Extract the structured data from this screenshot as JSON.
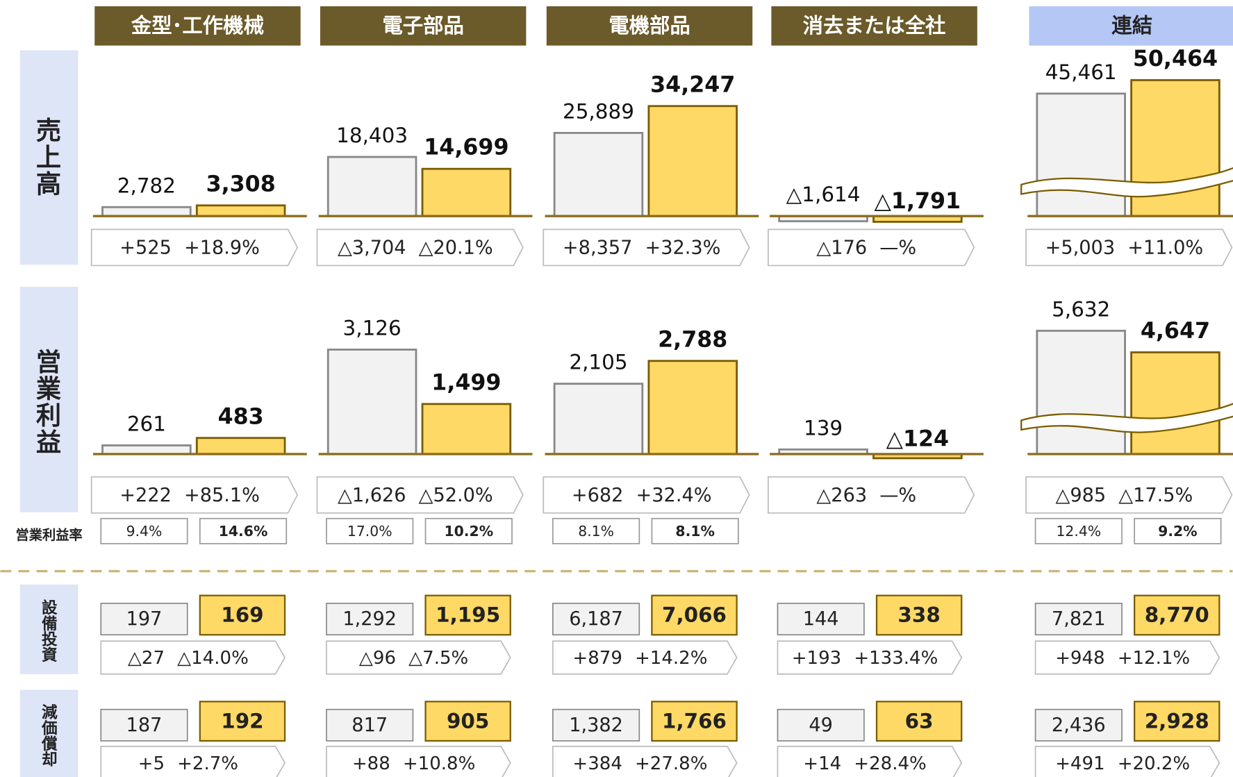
{
  "row_labels": {
    "sales": "売上高",
    "op": "営業利益",
    "margin": "営業利益率",
    "capex": "設備投資",
    "dep": "減価償却"
  },
  "colors": {
    "prev": "#f2f2f2",
    "curr": "#ffd966",
    "header": "#6b5a2a",
    "header_total": "#b4c7f5"
  },
  "segments": [
    {
      "name": "金型･工作機械",
      "sales": {
        "prev": {
          "value": 2782,
          "label": "2,782"
        },
        "curr": {
          "value": 3308,
          "label": "3,308"
        },
        "diff": "+525",
        "rate": "+18.9%"
      },
      "op": {
        "prev": {
          "value": 261,
          "label": "261"
        },
        "curr": {
          "value": 483,
          "label": "483"
        },
        "diff": "+222",
        "rate": "+85.1%"
      },
      "margin": [
        "9.4%",
        "14.6%"
      ],
      "capex": {
        "prev": "197",
        "curr": "169",
        "diff": "△27",
        "rate": "△14.0%"
      },
      "dep": {
        "prev": "187",
        "curr": "192",
        "diff": "+5",
        "rate": "+2.7%"
      }
    },
    {
      "name": "電子部品",
      "sales": {
        "prev": {
          "value": 18403,
          "label": "18,403"
        },
        "curr": {
          "value": 14699,
          "label": "14,699"
        },
        "diff": "△3,704",
        "rate": "△20.1%"
      },
      "op": {
        "prev": {
          "value": 3126,
          "label": "3,126"
        },
        "curr": {
          "value": 1499,
          "label": "1,499"
        },
        "diff": "△1,626",
        "rate": "△52.0%"
      },
      "margin": [
        "17.0%",
        "10.2%"
      ],
      "capex": {
        "prev": "1,292",
        "curr": "1,195",
        "diff": "△96",
        "rate": "△7.5%"
      },
      "dep": {
        "prev": "817",
        "curr": "905",
        "diff": "+88",
        "rate": "+10.8%"
      }
    },
    {
      "name": "電機部品",
      "sales": {
        "prev": {
          "value": 25889,
          "label": "25,889"
        },
        "curr": {
          "value": 34247,
          "label": "34,247"
        },
        "diff": "+8,357",
        "rate": "+32.3%"
      },
      "op": {
        "prev": {
          "value": 2105,
          "label": "2,105"
        },
        "curr": {
          "value": 2788,
          "label": "2,788"
        },
        "diff": "+682",
        "rate": "+32.4%"
      },
      "margin": [
        "8.1%",
        "8.1%"
      ],
      "capex": {
        "prev": "6,187",
        "curr": "7,066",
        "diff": "+879",
        "rate": "+14.2%"
      },
      "dep": {
        "prev": "1,382",
        "curr": "1,766",
        "diff": "+384",
        "rate": "+27.8%"
      }
    },
    {
      "name": "消去または全社",
      "sales": {
        "prev": {
          "value": -1614,
          "label": "△1,614"
        },
        "curr": {
          "value": -1791,
          "label": "△1,791"
        },
        "diff": "△176",
        "rate": "—%"
      },
      "op": {
        "prev": {
          "value": 139,
          "label": "139"
        },
        "curr": {
          "value": -124,
          "label": "△124"
        },
        "diff": "△263",
        "rate": "—%"
      },
      "capex": {
        "prev": "144",
        "curr": "338",
        "diff": "+193",
        "rate": "+133.4%"
      },
      "dep": {
        "prev": "49",
        "curr": "63",
        "diff": "+14",
        "rate": "+28.4%"
      }
    },
    {
      "name": "連結",
      "axis_break": true,
      "sales": {
        "prev": {
          "value": 45461,
          "label": "45,461"
        },
        "curr": {
          "value": 50464,
          "label": "50,464"
        },
        "diff": "+5,003",
        "rate": "+11.0%"
      },
      "op": {
        "prev": {
          "value": 5632,
          "label": "5,632"
        },
        "curr": {
          "value": 4647,
          "label": "4,647"
        },
        "diff": "△985",
        "rate": "△17.5%"
      },
      "margin": [
        "12.4%",
        "9.2%"
      ],
      "capex": {
        "prev": "7,821",
        "curr": "8,770",
        "diff": "+948",
        "rate": "+12.1%"
      },
      "dep": {
        "prev": "2,436",
        "curr": "2,928",
        "diff": "+491",
        "rate": "+20.2%"
      }
    }
  ]
}
